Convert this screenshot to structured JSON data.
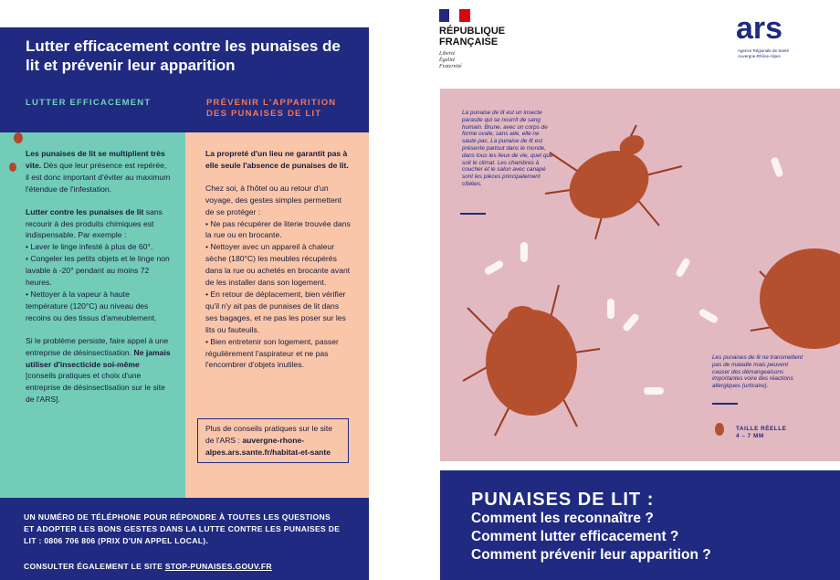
{
  "left_page": {
    "title": "Lutter efficacement contre les punaises de lit et prévenir leur apparition",
    "col1_heading": "LUTTER EFFICACEMENT",
    "col2_heading": "PRÉVENIR L'APPARITION DES PUNAISES DE LIT",
    "col1": {
      "p1_bold": "Les punaises de lit se multiplient très vite.",
      "p1_text": " Dès que leur présence est repérée, il est donc important d'éviter au maximum l'étendue de l'infestation.",
      "p2_bold": "Lutter contre les punaises de lit",
      "p2_text": " sans recourir à des produits chimiques est indispensable. Par exemple :",
      "items": [
        "• Laver le linge infesté à plus de 60°.",
        "• Congeler les petits objets et le linge non lavable à -20° pendant au moins 72 heures.",
        "• Nettoyer à la vapeur à haute température (120°C) au niveau des recoins ou des tissus d'ameublement."
      ],
      "p3_text": "Si le problème persiste, faire appel à une entreprise de désinsectisation. ",
      "p3_bold": "Ne jamais utiliser d'insecticide soi-même",
      "p3_end": " [conseils pratiques et choix d'une entreprise de désinsectisation sur le site de l'ARS]."
    },
    "col2": {
      "p1_bold": "La propreté d'un lieu ne garantit pas à elle seule l'absence de punaises de lit.",
      "p2_text": "Chez soi, à l'hôtel ou au retour d'un voyage, des gestes simples permettent de se protéger :",
      "items": [
        "• Ne pas récupérer de literie trouvée dans la rue ou en brocante.",
        "• Nettoyer avec un appareil à chaleur sèche (180°C) les meubles récupérés dans la rue ou achetés en brocante avant de les installer dans son logement.",
        "• En retour de déplacement, bien vérifier qu'il n'y ait pas de punaises de lit dans ses bagages, et ne pas les poser sur les lits ou fauteuils.",
        "• Bien entretenir son logement, passer régulièrement l'aspirateur et ne pas l'encombrer d'objets inutiles."
      ],
      "box_text": "Plus de conseils pratiques sur le site de l'ARS : ",
      "box_link": "auvergne-rhone-alpes.ars.sante.fr/habitat-et-sante"
    },
    "footer": {
      "phone": "UN NUMÉRO DE TÉLÉPHONE POUR RÉPONDRE À TOUTES LES QUESTIONS ET ADOPTER LES BONS GESTES DANS LA LUTTE CONTRE LES PUNAISES DE LIT : 0806 706 806 (PRIX D'UN APPEL LOCAL).",
      "site_text": "CONSULTER ÉGALEMENT LE SITE ",
      "site_link": "STOP-PUNAISES.GOUV.FR"
    }
  },
  "right_page": {
    "republique": [
      "RÉPUBLIQUE",
      "FRANÇAISE"
    ],
    "motto": [
      "Liberté",
      "Égalité",
      "Fraternité"
    ],
    "ars_logo": "ars",
    "ars_name": "Agence Régionale de Santé",
    "ars_region": "Auvergne-Rhône-Alpes",
    "caption_top": "La punaise de lit est un insecte parasite qui se nourrit de sang humain. Brune, avec un corps de forme ovale, sans aile, elle ne saute pas. La punaise de lit est présente partout dans le monde, dans tous les lieux de vie, quel que soit le climat. Les chambres à coucher et le salon avec canapé sont les pièces principalement ciblées.",
    "caption_bottom": "Les punaises de lit ne transmettent pas de maladie mais peuvent causer des démangeaisons importantes voire des réactions allergiques (urticaire).",
    "size_label": "TAILLE RÉELLE",
    "size_value": "4 – 7 MM",
    "heading": "PUNAISES DE LIT :",
    "questions": [
      "Comment les reconnaître ?",
      "Comment lutter efficacement ?",
      "Comment prévenir leur apparition ?"
    ]
  }
}
